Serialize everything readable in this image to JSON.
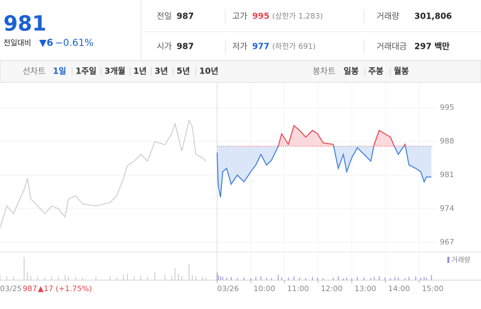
{
  "quote": {
    "price": "981",
    "change_label": "전일대비",
    "change": "▼6",
    "change_pct": "−0.61%"
  },
  "stats": [
    {
      "label": "전일",
      "value": "987"
    },
    {
      "label": "고가",
      "value": "995",
      "note": "(상한가 1,283)"
    },
    {
      "label": "거래량",
      "value": "301,806"
    },
    {
      "label": "시가",
      "value": "987"
    },
    {
      "label": "저가",
      "value": "977",
      "note": "(하한가 691)"
    },
    {
      "label": "거래대금",
      "value": "297 백만"
    }
  ],
  "tabs": {
    "line_label": "선차트",
    "line": [
      "1일",
      "1주일",
      "3개월",
      "1년",
      "3년",
      "5년",
      "10년"
    ],
    "candle_label": "봉차트",
    "candle": [
      "일봉",
      "주봉",
      "월봉"
    ]
  },
  "chart_data": {
    "type": "line",
    "ylim": [
      965,
      1000
    ],
    "yticks": [
      995,
      988,
      981,
      974,
      967
    ],
    "xlim": [
      -387,
      392
    ],
    "xticks": [
      {
        "value": 0,
        "label": "03/26"
      },
      {
        "value": 60,
        "label": "10:00"
      },
      {
        "value": 120,
        "label": "11:00"
      },
      {
        "value": 180,
        "label": "12:00"
      },
      {
        "value": 240,
        "label": "13:00"
      },
      {
        "value": 300,
        "label": "14:00"
      },
      {
        "value": 360,
        "label": "15:00"
      }
    ],
    "prev_close": 987,
    "vlim": [
      0,
      40
    ],
    "legend": "거래량",
    "prev_day": {
      "color": "#c8c8c8",
      "volume_color": "#c8c8c8",
      "x": [
        -387,
        -375,
        -363,
        -344,
        -338,
        -332,
        -320,
        -307,
        -295,
        -283,
        -271,
        -265,
        -252,
        -240,
        -216,
        -191,
        -179,
        -167,
        -160,
        -148,
        -136,
        -124,
        -111,
        -93,
        -81,
        -75,
        -69,
        -63,
        -50,
        -44,
        -38,
        -26,
        -20
      ],
      "values": [
        970,
        974.6,
        973,
        978,
        980.3,
        976,
        974.6,
        973,
        974.6,
        974,
        972.3,
        976,
        976.7,
        975,
        974.6,
        975.3,
        976.7,
        980.3,
        983,
        983.9,
        985.3,
        983.9,
        988,
        987.3,
        989.6,
        991.7,
        988.9,
        986,
        992.4,
        991,
        985.3,
        984.6,
        983.9
      ],
      "volume": [
        8,
        6,
        5,
        35,
        12,
        6,
        5,
        4,
        6,
        5,
        8,
        6,
        5,
        4,
        5,
        6,
        4,
        8,
        10,
        6,
        7,
        5,
        12,
        8,
        6,
        18,
        10,
        6,
        25,
        8,
        6,
        5,
        4
      ]
    },
    "today": {
      "up_color": "#e8414b",
      "down_color": "#3d7bd9",
      "up_fill": "#fbd9dc",
      "down_fill": "#dbe7f8",
      "volume_color": "#9b8fd6",
      "x": [
        0,
        2,
        6,
        10,
        17,
        25,
        36,
        48,
        60,
        69,
        78,
        88,
        97,
        109,
        115,
        127,
        137,
        147,
        158,
        170,
        179,
        189,
        207,
        216,
        225,
        231,
        240,
        250,
        262,
        274,
        280,
        289,
        299,
        309,
        317,
        323,
        335,
        342,
        354,
        363,
        369,
        373,
        382
      ],
      "values": [
        985.7,
        978.9,
        976.4,
        981.7,
        982.4,
        979.1,
        981,
        979.6,
        981.7,
        983.1,
        985.3,
        983.1,
        984.1,
        987,
        989.6,
        987.4,
        991.3,
        990.3,
        988.9,
        990.3,
        989.6,
        987.7,
        987.4,
        982.4,
        985.3,
        981.7,
        984.6,
        986.7,
        985.3,
        983.9,
        987.4,
        990.3,
        989.6,
        988.9,
        986.7,
        985.3,
        987.4,
        983.1,
        982.4,
        981.7,
        979.6,
        980.6,
        980.6
      ],
      "volume": [
        12,
        8,
        6,
        5,
        4,
        5,
        3,
        4,
        3,
        5,
        6,
        4,
        3,
        8,
        5,
        4,
        6,
        4,
        3,
        5,
        4,
        3,
        4,
        6,
        3,
        4,
        3,
        5,
        4,
        3,
        5,
        6,
        4,
        3,
        5,
        4,
        3,
        5,
        6,
        4,
        5,
        4,
        8
      ]
    }
  },
  "footer": {
    "date": "03/25",
    "close": "987",
    "change": "▲17 (+1.75%)"
  }
}
